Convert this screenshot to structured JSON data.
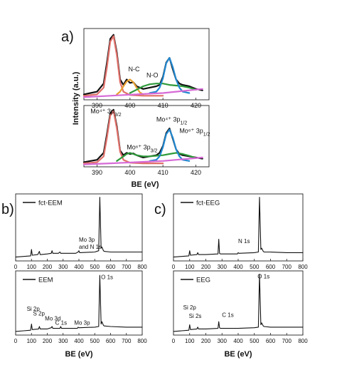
{
  "panels": {
    "a": {
      "label": "a)",
      "ylabel": "Intensity (a.u.)",
      "xlabel": "BE (eV)"
    },
    "b": {
      "label": "b)"
    },
    "c": {
      "label": "c)"
    }
  },
  "chart_data": [
    {
      "id": "a-top",
      "type": "line",
      "xlim": [
        386,
        424
      ],
      "xticks": [
        390,
        400,
        410,
        420
      ],
      "annotations": [
        {
          "text": "N-C",
          "x": 399.5,
          "y": 0.42
        },
        {
          "text": "N-O",
          "x": 405,
          "y": 0.33
        }
      ],
      "series": [
        {
          "role": "raw",
          "color": "#111111",
          "x": [
            386,
            388,
            390,
            392,
            393,
            394,
            395,
            396,
            397,
            398,
            399,
            400,
            401,
            402,
            404,
            406,
            408,
            409,
            410,
            411,
            412,
            413,
            414,
            415,
            416,
            418,
            420,
            422
          ],
          "y": [
            0.08,
            0.1,
            0.12,
            0.24,
            0.55,
            0.9,
            0.96,
            0.7,
            0.3,
            0.22,
            0.3,
            0.25,
            0.26,
            0.2,
            0.16,
            0.18,
            0.2,
            0.22,
            0.34,
            0.55,
            0.62,
            0.45,
            0.3,
            0.24,
            0.22,
            0.2,
            0.16,
            0.14
          ]
        },
        {
          "role": "fit-mo-3d",
          "color": "#e0706a",
          "x": [
            386,
            388,
            390,
            392,
            393,
            394,
            395,
            396,
            397,
            398,
            400,
            404,
            410
          ],
          "y": [
            0.06,
            0.07,
            0.08,
            0.18,
            0.48,
            0.86,
            0.94,
            0.66,
            0.26,
            0.12,
            0.07,
            0.06,
            0.06
          ]
        },
        {
          "role": "fit-n-c",
          "color": "#e8a030",
          "x": [
            396,
            397,
            398,
            399,
            400,
            401,
            402,
            403,
            404
          ],
          "y": [
            0.08,
            0.12,
            0.2,
            0.27,
            0.3,
            0.26,
            0.18,
            0.11,
            0.08
          ]
        },
        {
          "role": "fit-n-o",
          "color": "#2e9a3a",
          "x": [
            400,
            402,
            404,
            406,
            408,
            410,
            412,
            414,
            416,
            418,
            420
          ],
          "y": [
            0.1,
            0.15,
            0.2,
            0.23,
            0.24,
            0.24,
            0.22,
            0.21,
            0.2,
            0.18,
            0.15
          ]
        },
        {
          "role": "fit-mo-3p",
          "color": "#2288d0",
          "x": [
            406,
            408,
            409,
            410,
            411,
            412,
            413,
            414,
            415,
            416,
            418
          ],
          "y": [
            0.1,
            0.12,
            0.18,
            0.32,
            0.54,
            0.62,
            0.48,
            0.3,
            0.18,
            0.12,
            0.1
          ]
        },
        {
          "role": "background",
          "color": "#d66ad6",
          "x": [
            386,
            390,
            394,
            398,
            402,
            406,
            410,
            414,
            418,
            422
          ],
          "y": [
            0.04,
            0.05,
            0.06,
            0.07,
            0.08,
            0.09,
            0.1,
            0.12,
            0.14,
            0.16
          ]
        }
      ]
    },
    {
      "id": "a-bottom",
      "type": "line",
      "xlim": [
        386,
        424
      ],
      "xticks": [
        390,
        400,
        410,
        420
      ],
      "annotations": [
        {
          "text": "Mo⁴⁺ 3p",
          "sub": "3/2",
          "x": 388,
          "y": 0.92
        },
        {
          "text": "Mo⁶⁺ 3p",
          "sub": "3/2",
          "x": 399,
          "y": 0.3
        },
        {
          "text": "Mo⁴⁺ 3p",
          "sub": "1/2",
          "x": 408,
          "y": 0.78
        },
        {
          "text": "Mo⁶⁺ 3p",
          "sub": "1/2",
          "x": 415,
          "y": 0.58
        }
      ],
      "series": [
        {
          "role": "raw",
          "color": "#111111",
          "x": [
            386,
            388,
            390,
            392,
            393,
            394,
            395,
            396,
            397,
            398,
            399,
            400,
            401,
            402,
            404,
            406,
            408,
            409,
            410,
            411,
            412,
            413,
            414,
            415,
            416,
            418,
            420,
            422
          ],
          "y": [
            0.08,
            0.1,
            0.12,
            0.24,
            0.56,
            0.92,
            0.98,
            0.7,
            0.28,
            0.2,
            0.24,
            0.22,
            0.23,
            0.2,
            0.16,
            0.18,
            0.2,
            0.24,
            0.36,
            0.58,
            0.66,
            0.48,
            0.3,
            0.22,
            0.2,
            0.18,
            0.16,
            0.14
          ]
        },
        {
          "role": "fit-mo4-3p32",
          "color": "#e0706a",
          "x": [
            386,
            388,
            390,
            392,
            393,
            394,
            395,
            396,
            397,
            398,
            400,
            404,
            410
          ],
          "y": [
            0.06,
            0.07,
            0.08,
            0.18,
            0.5,
            0.88,
            0.96,
            0.66,
            0.26,
            0.12,
            0.07,
            0.06,
            0.06
          ]
        },
        {
          "role": "fit-mo6-3p32",
          "color": "#2e9a3a",
          "x": [
            396,
            397,
            398,
            399,
            400,
            401,
            402,
            404,
            406,
            408,
            410,
            412,
            414,
            416,
            418,
            420
          ],
          "y": [
            0.1,
            0.14,
            0.18,
            0.22,
            0.24,
            0.22,
            0.2,
            0.18,
            0.18,
            0.19,
            0.2,
            0.22,
            0.24,
            0.22,
            0.19,
            0.15
          ]
        },
        {
          "role": "fit-mo4-3p12",
          "color": "#2288d0",
          "x": [
            406,
            408,
            409,
            410,
            411,
            412,
            413,
            414,
            415,
            416,
            418
          ],
          "y": [
            0.1,
            0.12,
            0.18,
            0.34,
            0.56,
            0.64,
            0.5,
            0.3,
            0.18,
            0.12,
            0.1
          ]
        },
        {
          "role": "background",
          "color": "#d66ad6",
          "x": [
            386,
            390,
            394,
            398,
            402,
            406,
            410,
            414,
            418,
            422
          ],
          "y": [
            0.04,
            0.05,
            0.06,
            0.07,
            0.08,
            0.09,
            0.1,
            0.12,
            0.14,
            0.16
          ]
        }
      ]
    },
    {
      "id": "b-top",
      "type": "line",
      "legend": "fct-EEM",
      "xlim": [
        0,
        800
      ],
      "xticks": [
        0,
        100,
        200,
        300,
        400,
        500,
        600,
        700,
        800
      ],
      "annotations": [
        {
          "text": "Mo 3p",
          "text2": "and N 1s",
          "x": 400,
          "y": 0.3
        }
      ],
      "series": [
        {
          "color": "#111111",
          "x": [
            0,
            50,
            95,
            100,
            105,
            140,
            150,
            155,
            160,
            200,
            225,
            230,
            235,
            270,
            280,
            285,
            290,
            380,
            395,
            400,
            405,
            500,
            525,
            532,
            540,
            545,
            555,
            560,
            600,
            700,
            800
          ],
          "y": [
            0.06,
            0.07,
            0.08,
            0.18,
            0.09,
            0.1,
            0.15,
            0.1,
            0.1,
            0.11,
            0.12,
            0.16,
            0.12,
            0.12,
            0.14,
            0.12,
            0.12,
            0.12,
            0.14,
            0.16,
            0.13,
            0.14,
            0.16,
            1.0,
            0.2,
            0.22,
            0.16,
            0.15,
            0.14,
            0.14,
            0.14
          ]
        }
      ]
    },
    {
      "id": "b-bottom",
      "type": "line",
      "legend": "EEM",
      "xlim": [
        0,
        800
      ],
      "xticks": [
        0,
        100,
        200,
        300,
        400,
        500,
        600,
        700,
        800
      ],
      "annotations": [
        {
          "text": "Si 2p",
          "x": 70,
          "y": 0.4
        },
        {
          "text": "S 2p",
          "x": 110,
          "y": 0.32
        },
        {
          "text": "Mo 3d",
          "x": 185,
          "y": 0.24
        },
        {
          "text": "C 1s",
          "x": 250,
          "y": 0.17
        },
        {
          "text": "Mo 3p",
          "x": 370,
          "y": 0.17
        },
        {
          "text": "O 1s",
          "x": 540,
          "y": 0.92
        }
      ],
      "series": [
        {
          "color": "#111111",
          "x": [
            0,
            50,
            95,
            100,
            105,
            145,
            150,
            155,
            200,
            225,
            230,
            235,
            280,
            285,
            290,
            390,
            395,
            400,
            405,
            500,
            525,
            532,
            540,
            545,
            555,
            560,
            600,
            700,
            800
          ],
          "y": [
            0.06,
            0.07,
            0.08,
            0.18,
            0.09,
            0.1,
            0.14,
            0.1,
            0.1,
            0.12,
            0.14,
            0.11,
            0.11,
            0.14,
            0.11,
            0.11,
            0.13,
            0.12,
            0.12,
            0.13,
            0.14,
            0.98,
            0.18,
            0.22,
            0.16,
            0.15,
            0.14,
            0.13,
            0.13
          ]
        }
      ]
    },
    {
      "id": "c-top",
      "type": "line",
      "legend": "fct-EEG",
      "xlim": [
        0,
        800
      ],
      "xticks": [
        0,
        100,
        200,
        300,
        400,
        500,
        600,
        700,
        800
      ],
      "annotations": [
        {
          "text": "N 1s",
          "x": 400,
          "y": 0.28
        }
      ],
      "series": [
        {
          "color": "#111111",
          "x": [
            0,
            50,
            95,
            100,
            105,
            145,
            150,
            155,
            200,
            275,
            280,
            285,
            290,
            395,
            400,
            405,
            500,
            525,
            532,
            540,
            545,
            555,
            560,
            600,
            700,
            800
          ],
          "y": [
            0.06,
            0.07,
            0.08,
            0.16,
            0.09,
            0.1,
            0.13,
            0.1,
            0.1,
            0.11,
            0.34,
            0.12,
            0.11,
            0.11,
            0.13,
            0.12,
            0.13,
            0.14,
            1.0,
            0.18,
            0.2,
            0.15,
            0.14,
            0.14,
            0.13,
            0.13
          ]
        }
      ]
    },
    {
      "id": "c-bottom",
      "type": "line",
      "legend": "EEG",
      "xlim": [
        0,
        800
      ],
      "xticks": [
        0,
        100,
        200,
        300,
        400,
        500,
        600,
        700,
        800
      ],
      "annotations": [
        {
          "text": "Si 2p",
          "x": 60,
          "y": 0.42
        },
        {
          "text": "Si 2s",
          "x": 95,
          "y": 0.28
        },
        {
          "text": "C 1s",
          "x": 300,
          "y": 0.3
        },
        {
          "text": "O 1s",
          "x": 520,
          "y": 0.93
        }
      ],
      "series": [
        {
          "color": "#111111",
          "x": [
            0,
            50,
            95,
            100,
            105,
            145,
            150,
            155,
            200,
            275,
            280,
            285,
            290,
            400,
            500,
            525,
            532,
            540,
            545,
            555,
            560,
            600,
            700,
            800
          ],
          "y": [
            0.06,
            0.07,
            0.08,
            0.17,
            0.09,
            0.1,
            0.13,
            0.1,
            0.1,
            0.11,
            0.22,
            0.12,
            0.11,
            0.11,
            0.12,
            0.13,
            1.0,
            0.17,
            0.2,
            0.15,
            0.14,
            0.13,
            0.13,
            0.13
          ]
        }
      ]
    }
  ]
}
